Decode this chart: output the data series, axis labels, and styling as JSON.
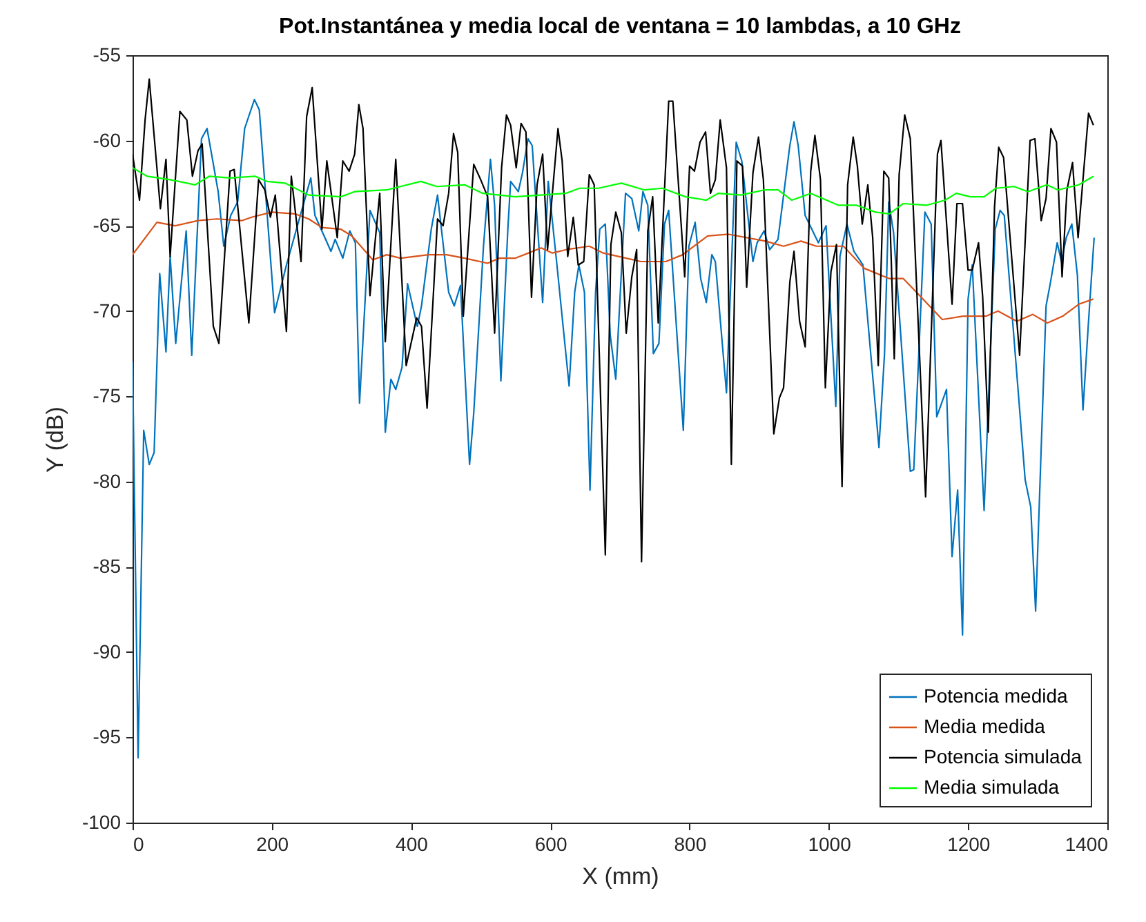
{
  "chart_data": {
    "type": "line",
    "title": "Pot.Instantánea y media local de ventana = 10 lambdas, a 10 GHz",
    "xlabel": "X (mm)",
    "ylabel": "Y (dB)",
    "xlim": [
      0,
      1400
    ],
    "xticks": [
      0,
      200,
      400,
      600,
      800,
      1000,
      1200,
      1400
    ],
    "ylim": [
      -100,
      -55
    ],
    "yticks": [
      -100,
      -95,
      -90,
      -85,
      -80,
      -75,
      -70,
      -65,
      -60,
      -55
    ],
    "grid": false,
    "legend": "bottom right",
    "series": [
      {
        "name": "Potencia medida",
        "color": "#0072bd",
        "x": [
          0,
          8,
          16,
          24,
          31,
          39,
          48,
          54,
          62,
          77,
          85,
          99,
          107,
          123,
          131,
          141,
          151,
          161,
          175,
          182,
          204,
          221,
          256,
          262,
          285,
          291,
          302,
          312,
          320,
          326,
          341,
          355,
          363,
          371,
          378,
          387,
          395,
          409,
          415,
          429,
          438,
          454,
          462,
          471,
          484,
          490,
          504,
          514,
          520,
          529,
          539,
          543,
          554,
          560,
          568,
          574,
          589,
          597,
          609,
          627,
          635,
          641,
          649,
          657,
          665,
          671,
          679,
          686,
          694,
          708,
          717,
          727,
          733,
          740,
          748,
          756,
          764,
          770,
          791,
          799,
          808,
          816,
          824,
          832,
          837,
          853,
          867,
          875,
          891,
          897,
          907,
          915,
          927,
          944,
          950,
          956,
          966,
          985,
          996,
          1010,
          1016,
          1026,
          1036,
          1049,
          1072,
          1080,
          1086,
          1093,
          1117,
          1122,
          1138,
          1147,
          1155,
          1169,
          1177,
          1185,
          1192,
          1200,
          1206,
          1223,
          1239,
          1246,
          1252,
          1282,
          1290,
          1297,
          1312,
          1318,
          1328,
          1334,
          1341,
          1349,
          1357,
          1365,
          1373,
          1381
        ],
        "values": [
          -73,
          -96.2,
          -77,
          -79,
          -78.3,
          -67.8,
          -72.4,
          -66.8,
          -71.9,
          -65.3,
          -72.6,
          -59.9,
          -59.3,
          -63,
          -66.2,
          -64.4,
          -63.6,
          -59.3,
          -57.6,
          -58.2,
          -70.1,
          -67.3,
          -62.2,
          -64.4,
          -66.5,
          -65.8,
          -66.9,
          -65.3,
          -66,
          -75.4,
          -64.1,
          -65.4,
          -77.1,
          -74,
          -74.6,
          -73.3,
          -68.4,
          -70.9,
          -69.7,
          -65.2,
          -63.2,
          -68.9,
          -69.7,
          -68.5,
          -79,
          -76,
          -66.2,
          -61.1,
          -63.8,
          -74.1,
          -65.2,
          -62.4,
          -63,
          -61.9,
          -59.9,
          -60.3,
          -69.5,
          -62.4,
          -67.1,
          -74.4,
          -68.9,
          -67.3,
          -68.9,
          -80.5,
          -68.9,
          -65.2,
          -64.9,
          -71.4,
          -74,
          -63.1,
          -63.4,
          -65.3,
          -63,
          -63.8,
          -72.5,
          -71.9,
          -64.9,
          -64.1,
          -77,
          -66.2,
          -64.8,
          -68.1,
          -69.5,
          -66.7,
          -67.1,
          -74.8,
          -60.1,
          -61.2,
          -67.1,
          -66,
          -65.3,
          -66.4,
          -65.8,
          -60.3,
          -58.9,
          -60.3,
          -64.4,
          -66,
          -65,
          -75.6,
          -66.8,
          -64.9,
          -66.5,
          -67.3,
          -78,
          -72.5,
          -63.6,
          -65.4,
          -79.4,
          -79.3,
          -64.2,
          -64.9,
          -76.2,
          -74.6,
          -84.4,
          -80.5,
          -89,
          -69.3,
          -67.3,
          -81.7,
          -65.2,
          -64.1,
          -64.4,
          -79.9,
          -81.5,
          -87.6,
          -69.7,
          -68.4,
          -66,
          -67.1,
          -65.7,
          -64.9,
          -67.9,
          -75.8,
          -70.6,
          -65.7
        ]
      },
      {
        "name": "Media medida",
        "color": "#d95319",
        "x": [
          0,
          35,
          61,
          94,
          121,
          157,
          171,
          200,
          233,
          253,
          272,
          299,
          315,
          345,
          365,
          385,
          425,
          451,
          477,
          510,
          527,
          550,
          587,
          603,
          623,
          656,
          676,
          709,
          730,
          766,
          790,
          826,
          856,
          909,
          935,
          960,
          982,
          1021,
          1051,
          1087,
          1107,
          1133,
          1163,
          1193,
          1226,
          1243,
          1270,
          1293,
          1314,
          1336,
          1359,
          1380
        ],
        "values": [
          -66.7,
          -64.8,
          -65,
          -64.7,
          -64.6,
          -64.7,
          -64.5,
          -64.2,
          -64.3,
          -64.6,
          -65.1,
          -65.2,
          -65.6,
          -67,
          -66.7,
          -66.9,
          -66.7,
          -66.7,
          -66.9,
          -67.2,
          -66.9,
          -66.9,
          -66.3,
          -66.6,
          -66.4,
          -66.2,
          -66.6,
          -66.9,
          -67.1,
          -67.1,
          -66.7,
          -65.6,
          -65.5,
          -65.9,
          -66.2,
          -65.9,
          -66.2,
          -66.2,
          -67.5,
          -68.1,
          -68.1,
          -69.2,
          -70.5,
          -70.3,
          -70.3,
          -70,
          -70.6,
          -70.2,
          -70.7,
          -70.3,
          -69.6,
          -69.3
        ]
      },
      {
        "name": "Potencia simulada",
        "color": "#000000",
        "x": [
          0,
          10,
          18,
          24,
          40,
          48,
          54,
          68,
          78,
          86,
          94,
          100,
          116,
          124,
          140,
          146,
          167,
          181,
          190,
          198,
          205,
          221,
          228,
          242,
          250,
          258,
          272,
          279,
          294,
          302,
          311,
          319,
          325,
          331,
          341,
          355,
          363,
          378,
          393,
          408,
          415,
          423,
          438,
          446,
          454,
          461,
          467,
          475,
          490,
          500,
          510,
          520,
          530,
          537,
          543,
          551,
          558,
          565,
          573,
          581,
          589,
          596,
          611,
          617,
          625,
          633,
          640,
          648,
          656,
          663,
          679,
          687,
          694,
          702,
          709,
          717,
          724,
          731,
          740,
          747,
          755,
          770,
          776,
          793,
          800,
          807,
          815,
          823,
          830,
          837,
          844,
          853,
          860,
          868,
          876,
          882,
          891,
          899,
          906,
          921,
          929,
          935,
          944,
          950,
          958,
          966,
          974,
          980,
          988,
          995,
          1003,
          1011,
          1019,
          1027,
          1035,
          1041,
          1048,
          1056,
          1063,
          1071,
          1079,
          1086,
          1094,
          1101,
          1109,
          1117,
          1139,
          1156,
          1161,
          1177,
          1184,
          1192,
          1200,
          1206,
          1215,
          1221,
          1229,
          1238,
          1244,
          1251,
          1274,
          1289,
          1296,
          1305,
          1312,
          1319,
          1327,
          1335,
          1342,
          1350,
          1358,
          1373,
          1380
        ],
        "values": [
          -60.8,
          -63.5,
          -58.8,
          -56.4,
          -64,
          -61.1,
          -66.8,
          -58.3,
          -58.8,
          -62.1,
          -60.6,
          -60.2,
          -70.9,
          -71.9,
          -61.8,
          -61.7,
          -70.7,
          -62.3,
          -62.9,
          -64.5,
          -63.2,
          -71.2,
          -62.1,
          -67.1,
          -58.6,
          -56.9,
          -65.2,
          -61.2,
          -65.7,
          -61.2,
          -61.8,
          -60.8,
          -57.9,
          -59.3,
          -69.1,
          -63.1,
          -71.8,
          -61.1,
          -73.2,
          -70.4,
          -70.9,
          -75.7,
          -64.6,
          -65,
          -63.1,
          -59.6,
          -60.7,
          -70.3,
          -61.4,
          -62.3,
          -63.3,
          -71.3,
          -61.6,
          -58.5,
          -59.1,
          -61.6,
          -59,
          -59.5,
          -69.2,
          -62.6,
          -60.8,
          -66.4,
          -59.3,
          -61.2,
          -66.8,
          -64.5,
          -67.3,
          -67.1,
          -62,
          -62.6,
          -84.3,
          -66.1,
          -64.2,
          -65.4,
          -71.3,
          -68,
          -66.4,
          -84.7,
          -65.3,
          -63.3,
          -70.7,
          -57.7,
          -57.7,
          -68,
          -61.5,
          -61.8,
          -60.1,
          -59.5,
          -63.1,
          -62.3,
          -58.8,
          -61.6,
          -79,
          -61.2,
          -61.5,
          -68.6,
          -61.9,
          -59.8,
          -62.3,
          -77.2,
          -75.1,
          -74.5,
          -68.3,
          -66.5,
          -70.6,
          -72.1,
          -61.8,
          -59.7,
          -62.3,
          -74.5,
          -67.7,
          -66.1,
          -80.3,
          -62.6,
          -59.8,
          -61.5,
          -64.9,
          -62.6,
          -65.7,
          -73.2,
          -61.8,
          -62.2,
          -72.8,
          -62,
          -58.5,
          -59.9,
          -80.9,
          -60.8,
          -60,
          -69.6,
          -63.7,
          -63.7,
          -67.6,
          -67.6,
          -66,
          -69.2,
          -77.1,
          -63.9,
          -60.4,
          -61,
          -72.6,
          -60,
          -59.9,
          -64.7,
          -63.4,
          -59.3,
          -60.1,
          -68,
          -62.9,
          -61.3,
          -65.7,
          -58.4,
          -59.1
        ]
      },
      {
        "name": "Media simulada",
        "color": "#00ff00",
        "x": [
          0,
          21,
          54,
          90,
          110,
          140,
          176,
          193,
          219,
          253,
          299,
          319,
          365,
          414,
          437,
          477,
          503,
          550,
          622,
          642,
          669,
          702,
          735,
          761,
          794,
          824,
          841,
          874,
          907,
          927,
          947,
          974,
          1014,
          1040,
          1067,
          1087,
          1107,
          1140,
          1167,
          1183,
          1203,
          1223,
          1240,
          1266,
          1286,
          1313,
          1329,
          1359,
          1380
        ],
        "values": [
          -61.6,
          -62.1,
          -62.3,
          -62.6,
          -62.1,
          -62.2,
          -62.1,
          -62.4,
          -62.5,
          -63.2,
          -63.3,
          -63,
          -62.9,
          -62.4,
          -62.7,
          -62.6,
          -63.1,
          -63.3,
          -63.1,
          -62.8,
          -62.8,
          -62.5,
          -62.9,
          -62.8,
          -63.3,
          -63.5,
          -63.1,
          -63.2,
          -62.9,
          -62.9,
          -63.5,
          -63.1,
          -63.8,
          -63.8,
          -64.2,
          -64.3,
          -63.7,
          -63.8,
          -63.5,
          -63.1,
          -63.3,
          -63.3,
          -62.8,
          -62.7,
          -63,
          -62.6,
          -62.9,
          -62.6,
          -62.1
        ]
      }
    ]
  }
}
